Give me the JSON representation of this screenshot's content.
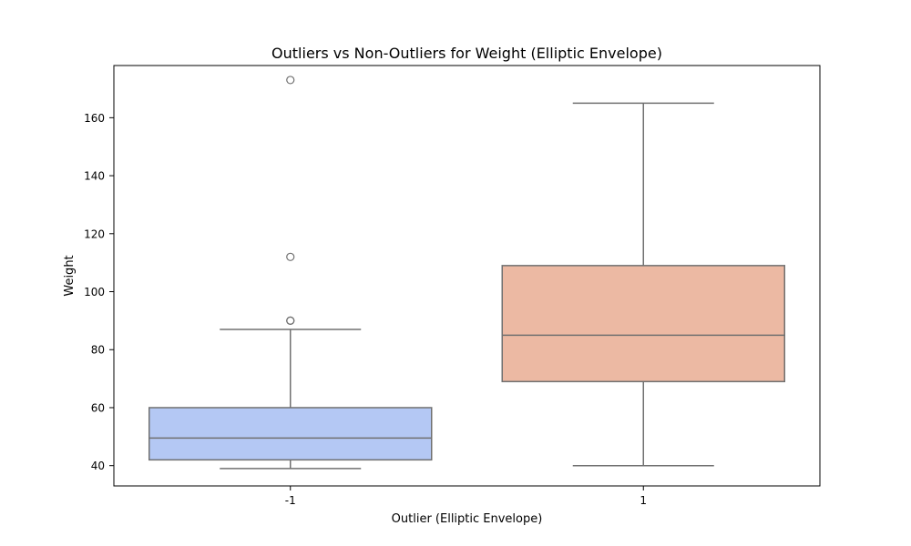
{
  "chart_data": {
    "type": "box",
    "title": "Outliers vs Non-Outliers for Weight (Elliptic Envelope)",
    "xlabel": "Outlier (Elliptic Envelope)",
    "ylabel": "Weight",
    "ylim": [
      33,
      178
    ],
    "yticks": [
      40,
      60,
      80,
      100,
      120,
      140,
      160
    ],
    "grid": false,
    "categories": [
      "-1",
      "1"
    ],
    "boxes": [
      {
        "category": "-1",
        "whisker_low": 39,
        "q1": 42,
        "median": 49.5,
        "q3": 60,
        "whisker_high": 87,
        "fliers": [
          90,
          90,
          112,
          173
        ],
        "color": "#b4c8f4"
      },
      {
        "category": "1",
        "whisker_low": 40,
        "q1": 69,
        "median": 85,
        "q3": 109,
        "whisker_high": 165,
        "fliers": [],
        "color": "#ecb9a3"
      }
    ],
    "line_color": "#707070"
  }
}
